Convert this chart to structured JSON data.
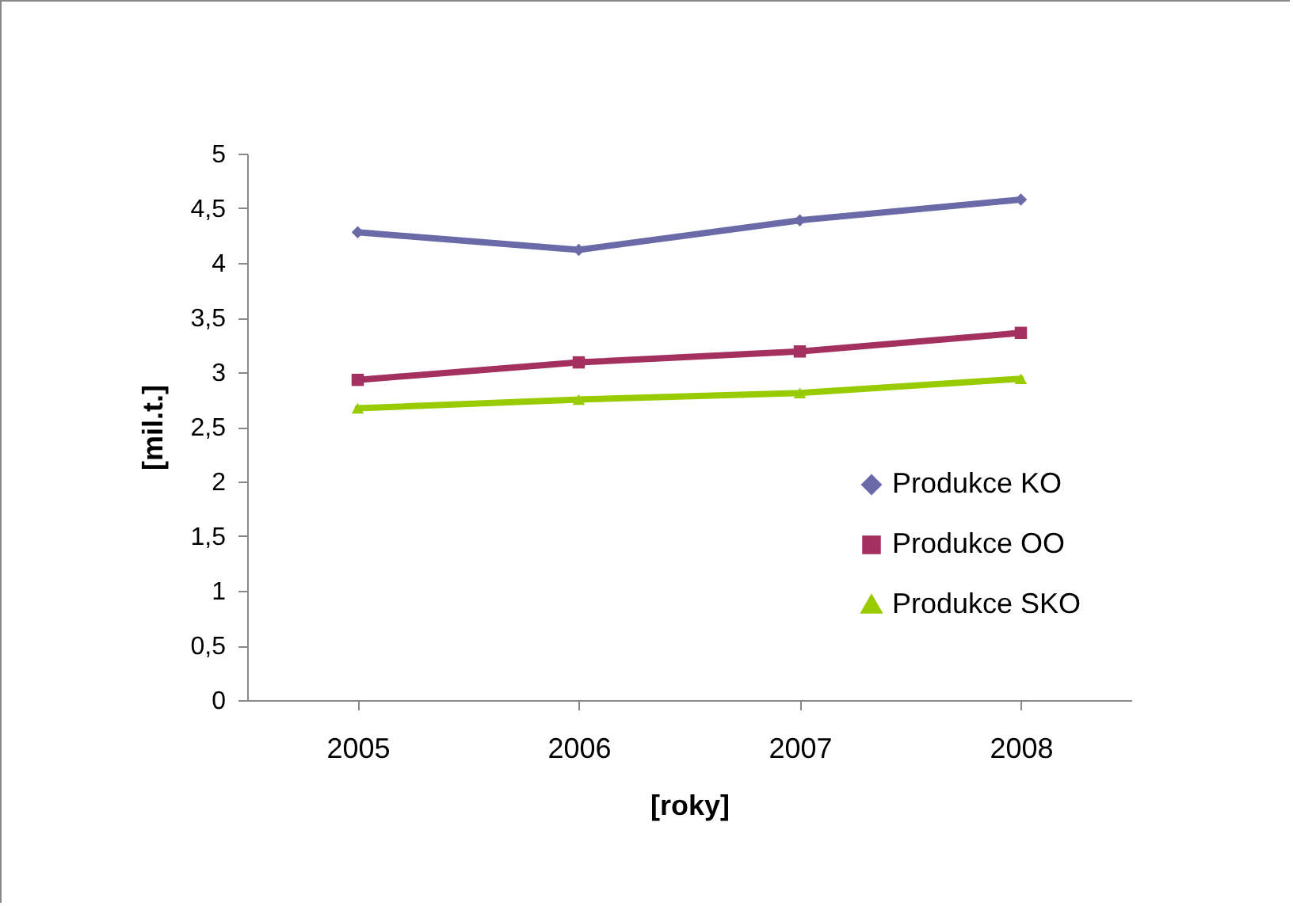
{
  "chart_data": {
    "type": "line",
    "xlabel": "[roky]",
    "ylabel": "[mil.t.]",
    "categories": [
      "2005",
      "2006",
      "2007",
      "2008"
    ],
    "ylim": [
      0,
      5
    ],
    "yticks": [
      0,
      {
        "value": 0.5,
        "label": "0,5"
      },
      1,
      {
        "value": 1.5,
        "label": "1,5"
      },
      2,
      {
        "value": 2.5,
        "label": "2,5"
      },
      3,
      {
        "value": 3.5,
        "label": "3,5"
      },
      4,
      {
        "value": 4.5,
        "label": "4,5"
      },
      5
    ],
    "grid": false,
    "legend": "right",
    "line_style": "solid",
    "series": [
      {
        "name": "Produkce KO",
        "color": "#6a6aa8",
        "marker": "diamond",
        "values": [
          4.28,
          4.12,
          4.39,
          4.58
        ]
      },
      {
        "name": "Produkce OO",
        "color": "#a3305e",
        "marker": "square",
        "values": [
          2.93,
          3.09,
          3.19,
          3.36
        ]
      },
      {
        "name": "Produkce SKO",
        "color": "#99cc00",
        "marker": "triangle",
        "values": [
          2.67,
          2.75,
          2.81,
          2.94
        ]
      }
    ]
  }
}
